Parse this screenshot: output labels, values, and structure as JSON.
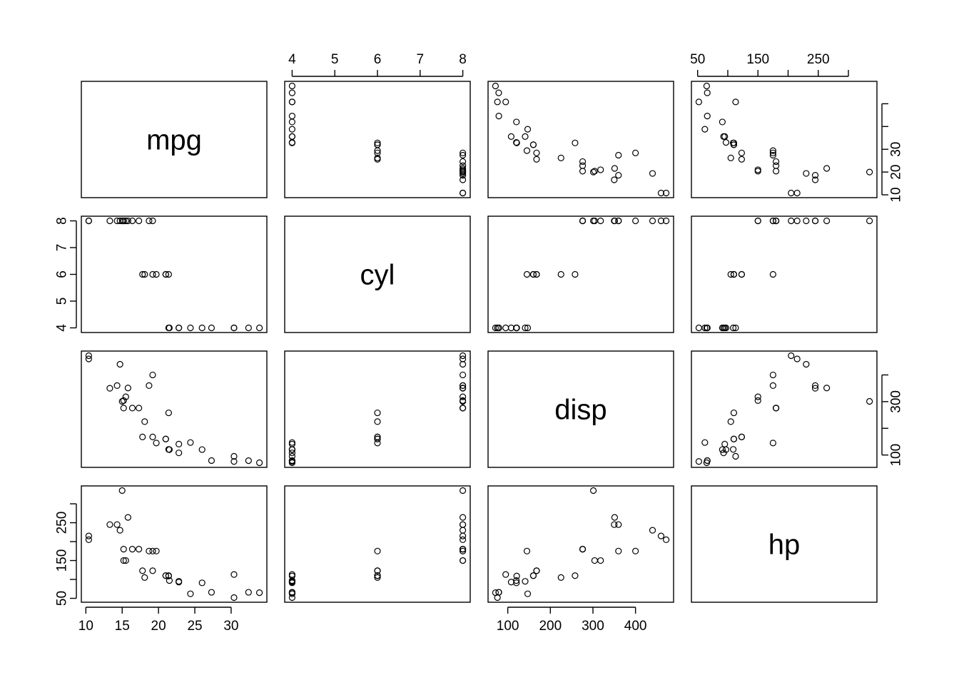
{
  "chart_data": {
    "type": "scatter",
    "variables": [
      "mpg",
      "cyl",
      "disp",
      "hp"
    ],
    "ranges": {
      "mpg": [
        10.4,
        33.9
      ],
      "cyl": [
        4,
        8
      ],
      "disp": [
        71.1,
        472
      ],
      "hp": [
        52,
        335
      ]
    },
    "ticks": {
      "mpg": [
        10,
        15,
        20,
        25,
        30
      ],
      "cyl": [
        4,
        5,
        6,
        7,
        8
      ],
      "disp": [
        100,
        200,
        300,
        400
      ],
      "hp": [
        50,
        100,
        150,
        200,
        250,
        300
      ]
    },
    "tick_labels": {
      "mpg": {
        "bottom": [
          "10",
          "15",
          "20",
          "25",
          "30"
        ],
        "right": [
          "10",
          "20",
          "30"
        ]
      },
      "cyl": {
        "top": [
          "4",
          "5",
          "6",
          "7",
          "8"
        ],
        "left": [
          "4",
          "5",
          "6",
          "7",
          "8"
        ]
      },
      "disp": {
        "bottom": [
          "100",
          "200",
          "300",
          "400"
        ],
        "right": [
          "100",
          "",
          "300",
          ""
        ]
      },
      "hp": {
        "top": [
          "50",
          "",
          "150",
          "",
          "250",
          ""
        ],
        "left": [
          "50",
          "",
          "150",
          "",
          "250",
          ""
        ]
      }
    },
    "observations": [
      {
        "mpg": 21.0,
        "cyl": 6,
        "disp": 160,
        "hp": 110
      },
      {
        "mpg": 21.0,
        "cyl": 6,
        "disp": 160,
        "hp": 110
      },
      {
        "mpg": 22.8,
        "cyl": 4,
        "disp": 108,
        "hp": 93
      },
      {
        "mpg": 21.4,
        "cyl": 6,
        "disp": 258,
        "hp": 110
      },
      {
        "mpg": 18.7,
        "cyl": 8,
        "disp": 360,
        "hp": 175
      },
      {
        "mpg": 18.1,
        "cyl": 6,
        "disp": 225,
        "hp": 105
      },
      {
        "mpg": 14.3,
        "cyl": 8,
        "disp": 360,
        "hp": 245
      },
      {
        "mpg": 24.4,
        "cyl": 4,
        "disp": 146.7,
        "hp": 62
      },
      {
        "mpg": 22.8,
        "cyl": 4,
        "disp": 140.8,
        "hp": 95
      },
      {
        "mpg": 19.2,
        "cyl": 6,
        "disp": 167.6,
        "hp": 123
      },
      {
        "mpg": 17.8,
        "cyl": 6,
        "disp": 167.6,
        "hp": 123
      },
      {
        "mpg": 16.4,
        "cyl": 8,
        "disp": 275.8,
        "hp": 180
      },
      {
        "mpg": 17.3,
        "cyl": 8,
        "disp": 275.8,
        "hp": 180
      },
      {
        "mpg": 15.2,
        "cyl": 8,
        "disp": 275.8,
        "hp": 180
      },
      {
        "mpg": 10.4,
        "cyl": 8,
        "disp": 472,
        "hp": 205
      },
      {
        "mpg": 10.4,
        "cyl": 8,
        "disp": 460,
        "hp": 215
      },
      {
        "mpg": 14.7,
        "cyl": 8,
        "disp": 440,
        "hp": 230
      },
      {
        "mpg": 32.4,
        "cyl": 4,
        "disp": 78.7,
        "hp": 66
      },
      {
        "mpg": 30.4,
        "cyl": 4,
        "disp": 75.7,
        "hp": 52
      },
      {
        "mpg": 33.9,
        "cyl": 4,
        "disp": 71.1,
        "hp": 65
      },
      {
        "mpg": 21.5,
        "cyl": 4,
        "disp": 120.1,
        "hp": 97
      },
      {
        "mpg": 15.5,
        "cyl": 8,
        "disp": 318,
        "hp": 150
      },
      {
        "mpg": 15.2,
        "cyl": 8,
        "disp": 304,
        "hp": 150
      },
      {
        "mpg": 13.3,
        "cyl": 8,
        "disp": 350,
        "hp": 245
      },
      {
        "mpg": 19.2,
        "cyl": 8,
        "disp": 400,
        "hp": 175
      },
      {
        "mpg": 27.3,
        "cyl": 4,
        "disp": 79,
        "hp": 66
      },
      {
        "mpg": 26.0,
        "cyl": 4,
        "disp": 120.3,
        "hp": 91
      },
      {
        "mpg": 30.4,
        "cyl": 4,
        "disp": 95.1,
        "hp": 113
      },
      {
        "mpg": 15.8,
        "cyl": 8,
        "disp": 351,
        "hp": 264
      },
      {
        "mpg": 19.7,
        "cyl": 6,
        "disp": 145,
        "hp": 175
      },
      {
        "mpg": 15.0,
        "cyl": 8,
        "disp": 301,
        "hp": 335
      },
      {
        "mpg": 21.4,
        "cyl": 4,
        "disp": 121,
        "hp": 109
      }
    ],
    "title": "",
    "grid": false,
    "legend": "none"
  }
}
